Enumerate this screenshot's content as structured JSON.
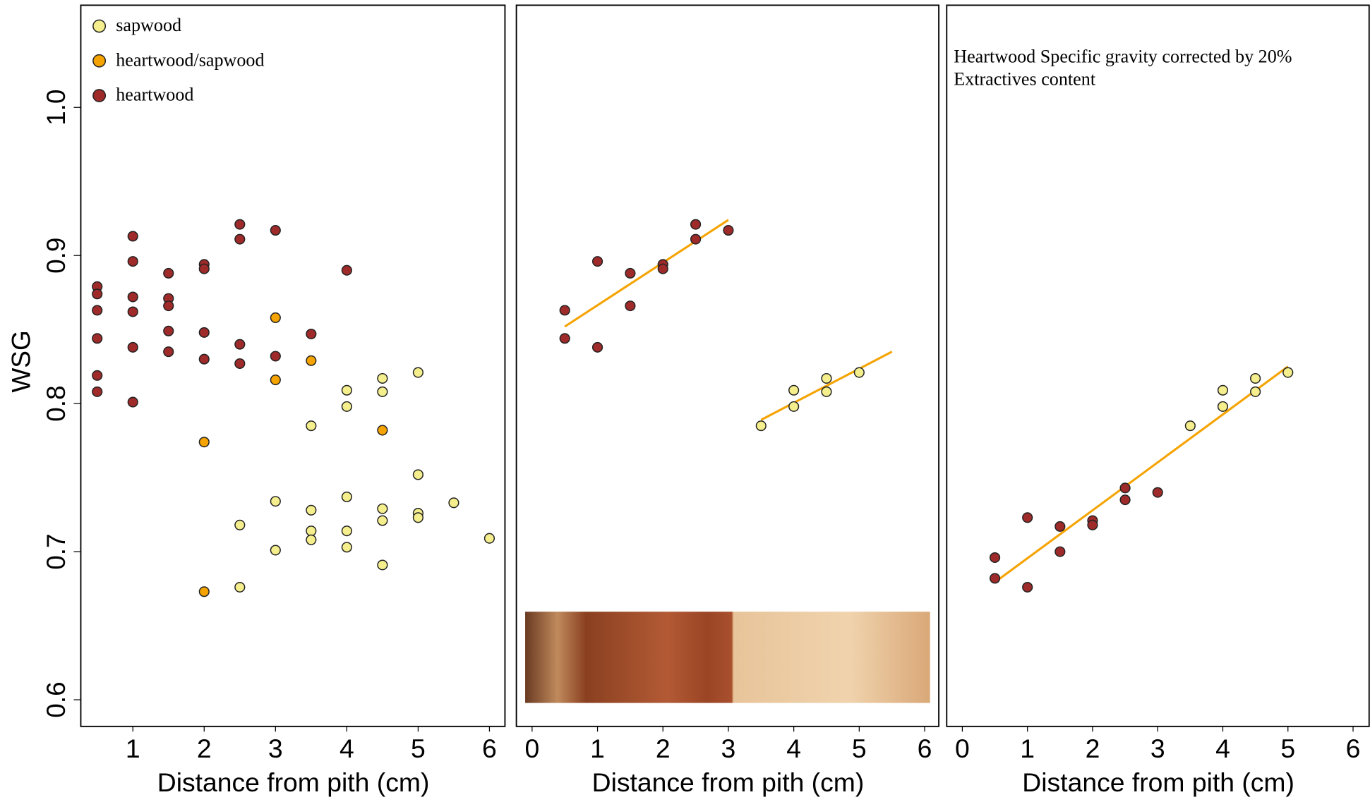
{
  "chart_data": [
    {
      "type": "scatter",
      "xlabel": "Distance from pith (cm)",
      "ylabel": "WSG",
      "xlim": [
        0.27,
        6.23
      ],
      "ylim": [
        0.582,
        1.069
      ],
      "xticks": [
        1,
        2,
        3,
        4,
        5,
        6
      ],
      "yticks": [
        0.6,
        0.7,
        0.8,
        0.9,
        {
          "value": 1,
          "label": "1.0"
        }
      ],
      "legend": "top-left",
      "series": [
        {
          "name": "sapwood",
          "color": "#f4ee8c",
          "x": [
            2.5,
            2.5,
            3,
            3,
            3.5,
            3.5,
            3.5,
            3.5,
            4,
            4,
            4,
            4,
            4,
            4.5,
            4.5,
            4.5,
            4.5,
            4.5,
            5,
            5,
            5,
            5,
            5.5,
            6
          ],
          "values": [
            0.718,
            0.676,
            0.734,
            0.701,
            0.785,
            0.728,
            0.714,
            0.708,
            0.809,
            0.798,
            0.737,
            0.714,
            0.703,
            0.817,
            0.808,
            0.729,
            0.721,
            0.691,
            0.821,
            0.752,
            0.726,
            0.723,
            0.733,
            0.709
          ]
        },
        {
          "name": "heartwood/sapwood",
          "color": "#f5a300",
          "x": [
            2,
            2,
            3,
            3,
            3.5,
            4.5
          ],
          "values": [
            0.774,
            0.673,
            0.858,
            0.816,
            0.829,
            0.782
          ]
        },
        {
          "name": "heartwood",
          "color": "#9e2a2a",
          "x": [
            0.5,
            0.5,
            0.5,
            0.5,
            0.5,
            0.5,
            1,
            1,
            1,
            1,
            1,
            1,
            1.5,
            1.5,
            1.5,
            1.5,
            1.5,
            2,
            2,
            2,
            2,
            2.5,
            2.5,
            2.5,
            2.5,
            3,
            3,
            3.5,
            4
          ],
          "values": [
            0.879,
            0.874,
            0.863,
            0.844,
            0.819,
            0.808,
            0.913,
            0.896,
            0.872,
            0.862,
            0.838,
            0.801,
            0.888,
            0.871,
            0.866,
            0.849,
            0.835,
            0.894,
            0.891,
            0.848,
            0.83,
            0.921,
            0.911,
            0.84,
            0.827,
            0.917,
            0.832,
            0.847,
            0.89
          ]
        }
      ]
    },
    {
      "type": "scatter",
      "xlabel": "Distance from pith (cm)",
      "xlim": [
        -0.24,
        6.23
      ],
      "ylim": [
        0.582,
        1.069
      ],
      "xticks": [
        0,
        1,
        2,
        3,
        4,
        5,
        6
      ],
      "series": [
        {
          "color": "#9e2a2a",
          "x": [
            0.5,
            0.5,
            1,
            1,
            1.5,
            1.5,
            2,
            2,
            2.5,
            2.5,
            3
          ],
          "values": [
            0.863,
            0.844,
            0.896,
            0.838,
            0.888,
            0.866,
            0.894,
            0.891,
            0.921,
            0.911,
            0.917
          ]
        },
        {
          "color": "#f4ee8c",
          "x": [
            3.5,
            4,
            4,
            4.5,
            4.5,
            5
          ],
          "values": [
            0.785,
            0.809,
            0.798,
            0.817,
            0.808,
            0.821
          ]
        }
      ],
      "lines": [
        {
          "color": "#f5a300",
          "x": [
            0.5,
            3
          ],
          "values": [
            0.852,
            0.924
          ]
        },
        {
          "color": "#f5a300",
          "x": [
            3.5,
            5.5
          ],
          "values": [
            0.789,
            0.835
          ]
        }
      ]
    },
    {
      "type": "scatter",
      "xlabel": "Distance from pith (cm)",
      "annotation": [
        "Heartwood Specific gravity corrected by  20%",
        "Extractives content"
      ],
      "xlim": [
        -0.24,
        6.26
      ],
      "ylim": [
        0.582,
        1.069
      ],
      "xticks": [
        0,
        1,
        2,
        3,
        4,
        5,
        6
      ],
      "series": [
        {
          "color": "#9e2a2a",
          "x": [
            0.5,
            0.5,
            1,
            1,
            1.5,
            1.5,
            2,
            2,
            2.5,
            2.5,
            3
          ],
          "values": [
            0.696,
            0.682,
            0.723,
            0.676,
            0.717,
            0.7,
            0.721,
            0.718,
            0.743,
            0.735,
            0.74
          ]
        },
        {
          "color": "#f4ee8c",
          "x": [
            3.5,
            4,
            4,
            4.5,
            4.5,
            5
          ],
          "values": [
            0.785,
            0.809,
            0.798,
            0.817,
            0.808,
            0.821
          ]
        }
      ],
      "lines": [
        {
          "color": "#f5a300",
          "x": [
            0.55,
            5
          ],
          "values": [
            0.681,
            0.825
          ]
        }
      ]
    }
  ]
}
